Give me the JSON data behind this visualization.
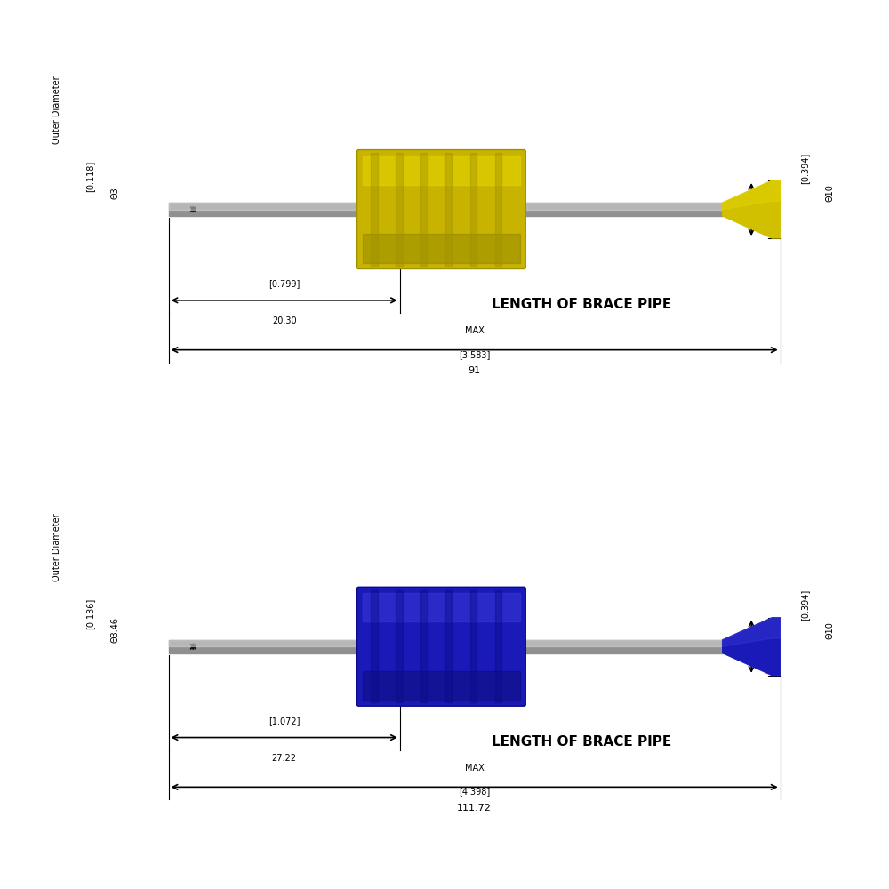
{
  "background_color": "#ffffff",
  "tool1": {
    "color_main": "#c8b400",
    "color_light": "#e8d800",
    "color_dark": "#a09000",
    "color_shadow": "#706800",
    "shaft_color": "#909090",
    "shaft_highlight": "#d0d0d0",
    "tip_color": "#d0c000",
    "label_text": "LENGTH OF BRACE PIPE",
    "dim_left_label1": "[0.799]",
    "dim_left_label2": "20.30",
    "dim_total_label1": "MAX",
    "dim_total_label2": "[3.583]",
    "dim_total_label3": "91",
    "od_left_label1": "Outer Diameter",
    "od_left_label2": "[0.118]",
    "od_left_label3": "Θ3",
    "od_right_label1": "[0.394]",
    "od_right_label2": "Θ10"
  },
  "tool2": {
    "color_main": "#1a1ab8",
    "color_light": "#3a3ad8",
    "color_dark": "#0a0a88",
    "color_shadow": "#050550",
    "shaft_color": "#909090",
    "shaft_highlight": "#d0d0d0",
    "tip_color": "#2020c0",
    "label_text": "LENGTH OF BRACE PIPE",
    "dim_left_label1": "[1.072]",
    "dim_left_label2": "27.22",
    "dim_total_label1": "MAX",
    "dim_total_label2": "[4.398]",
    "dim_total_label3": "111.72",
    "od_left_label1": "Outer Diameter",
    "od_left_label2": "[0.136]",
    "od_left_label3": "Θ3.46",
    "od_right_label1": "[0.394]",
    "od_right_label2": "Θ10"
  }
}
